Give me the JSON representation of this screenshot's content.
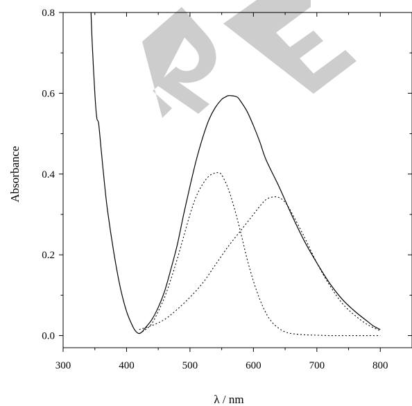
{
  "chart_data": {
    "type": "line",
    "title": "",
    "xlabel": "λ / nm",
    "ylabel": "Absorbance",
    "xlim": [
      300,
      850
    ],
    "ylim": [
      -0.03,
      0.8
    ],
    "x_ticks": [
      300,
      400,
      500,
      600,
      700,
      800
    ],
    "y_ticks": [
      0.0,
      0.2,
      0.4,
      0.6,
      0.8
    ],
    "x_tick_labels": [
      "300",
      "400",
      "500",
      "600",
      "700",
      "800"
    ],
    "y_tick_labels": [
      "0.0",
      "0.2",
      "0.4",
      "0.6",
      "0.8"
    ],
    "grid": false,
    "legend": "none",
    "watermark": "RE",
    "series": [
      {
        "style": "solid",
        "x": [
          344,
          346,
          350,
          353,
          356,
          360,
          365,
          370,
          380,
          390,
          400,
          410,
          415,
          420,
          425,
          430,
          440,
          450,
          460,
          470,
          480,
          490,
          500,
          510,
          520,
          530,
          540,
          550,
          555,
          560,
          565,
          570,
          575,
          580,
          590,
          600,
          610,
          620,
          640,
          660,
          680,
          700,
          720,
          740,
          760,
          780,
          790,
          800
        ],
        "y": [
          0.8,
          0.72,
          0.6,
          0.54,
          0.525,
          0.46,
          0.38,
          0.31,
          0.205,
          0.12,
          0.06,
          0.022,
          0.01,
          0.005,
          0.01,
          0.02,
          0.04,
          0.07,
          0.11,
          0.165,
          0.225,
          0.3,
          0.37,
          0.435,
          0.49,
          0.535,
          0.565,
          0.585,
          0.59,
          0.594,
          0.594,
          0.593,
          0.59,
          0.58,
          0.555,
          0.52,
          0.48,
          0.435,
          0.37,
          0.3,
          0.235,
          0.18,
          0.13,
          0.09,
          0.06,
          0.035,
          0.023,
          0.015
        ]
      },
      {
        "style": "dotted",
        "x": [
          420,
          430,
          440,
          450,
          460,
          470,
          480,
          490,
          500,
          510,
          520,
          530,
          540,
          545,
          550,
          560,
          570,
          580,
          590,
          600,
          610,
          620,
          630,
          640,
          650,
          660,
          680,
          700,
          720,
          740,
          760,
          780,
          800
        ],
        "y": [
          0.005,
          0.015,
          0.03,
          0.06,
          0.095,
          0.14,
          0.19,
          0.245,
          0.3,
          0.345,
          0.375,
          0.395,
          0.403,
          0.403,
          0.398,
          0.365,
          0.315,
          0.255,
          0.19,
          0.135,
          0.09,
          0.055,
          0.032,
          0.018,
          0.009,
          0.005,
          0.002,
          0.001,
          0.0,
          0.0,
          0.0,
          0.0,
          0.0
        ]
      },
      {
        "style": "dotted",
        "x": [
          420,
          440,
          460,
          480,
          500,
          520,
          540,
          560,
          580,
          600,
          610,
          620,
          630,
          640,
          650,
          660,
          680,
          700,
          720,
          740,
          760,
          780,
          800
        ],
        "y": [
          0.015,
          0.025,
          0.04,
          0.065,
          0.095,
          0.13,
          0.175,
          0.22,
          0.26,
          0.3,
          0.32,
          0.337,
          0.343,
          0.342,
          0.33,
          0.305,
          0.245,
          0.18,
          0.125,
          0.08,
          0.05,
          0.027,
          0.012
        ]
      }
    ]
  }
}
